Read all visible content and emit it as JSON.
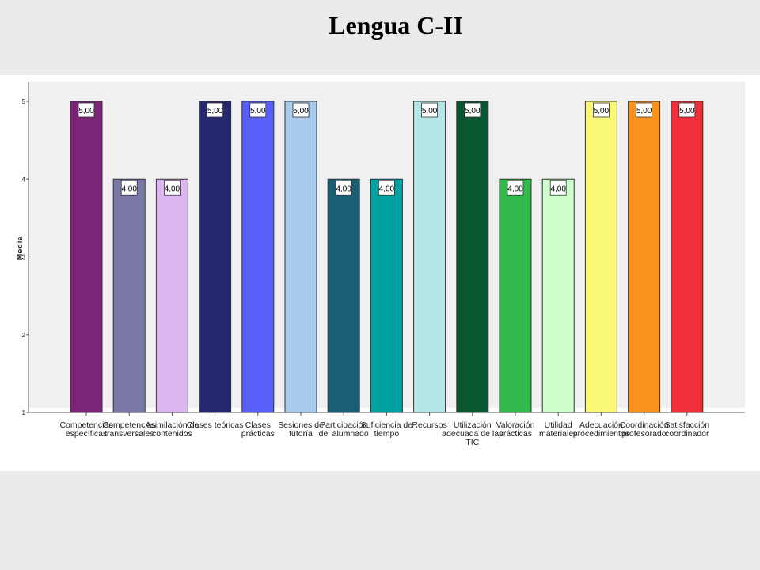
{
  "title": "Lengua C-II",
  "chart_data": {
    "type": "bar",
    "title": "",
    "xlabel": "",
    "ylabel": "Media",
    "ylim": [
      1,
      5
    ],
    "yticks": [
      1,
      2,
      3,
      4,
      5
    ],
    "grid": false,
    "legend": "none",
    "categories": [
      [
        "Competencias",
        "específicas"
      ],
      [
        "Competencias",
        "transversales"
      ],
      [
        "Asimilación de",
        "contenidos"
      ],
      [
        "Clases teóricas"
      ],
      [
        "Clases",
        "prácticas"
      ],
      [
        "Sesiones de",
        "tutoría"
      ],
      [
        "Participación",
        "del alumnado"
      ],
      [
        "Suficiencia de",
        "tiempo"
      ],
      [
        "Recursos"
      ],
      [
        "Utilización",
        "adecuada de las",
        "TIC"
      ],
      [
        "Valoración",
        "prácticas"
      ],
      [
        "Utilidad",
        "materiales"
      ],
      [
        "Adecuación",
        "procedimientos"
      ],
      [
        "Coordinación",
        "profesorado"
      ],
      [
        "Satisfacción",
        "coordinador"
      ]
    ],
    "values": [
      5,
      4,
      4,
      5,
      5,
      5,
      4,
      4,
      5,
      5,
      4,
      4,
      5,
      5,
      5
    ],
    "value_labels": [
      "5,00",
      "4,00",
      "4,00",
      "5,00",
      "5,00",
      "5,00",
      "4,00",
      "4,00",
      "5,00",
      "5,00",
      "4,00",
      "4,00",
      "5,00",
      "5,00",
      "5,00"
    ],
    "colors": [
      "#7b2479",
      "#7a78a6",
      "#dcb7ef",
      "#26276e",
      "#5b5ff9",
      "#a9cbee",
      "#1a5e74",
      "#00a3a0",
      "#b4e6e8",
      "#0a5630",
      "#31b94c",
      "#ccffcc",
      "#fbf877",
      "#f9931e",
      "#ef2f39"
    ]
  }
}
